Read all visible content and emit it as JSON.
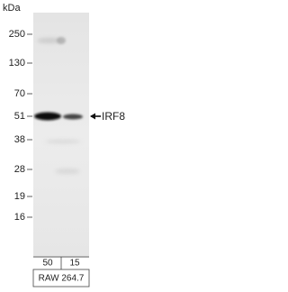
{
  "units": "kDa",
  "markers": [
    250,
    130,
    70,
    51,
    38,
    28,
    19,
    16
  ],
  "target": "IRF8",
  "lanes": [
    "50",
    "15"
  ],
  "cell_line": "RAW 264.7"
}
